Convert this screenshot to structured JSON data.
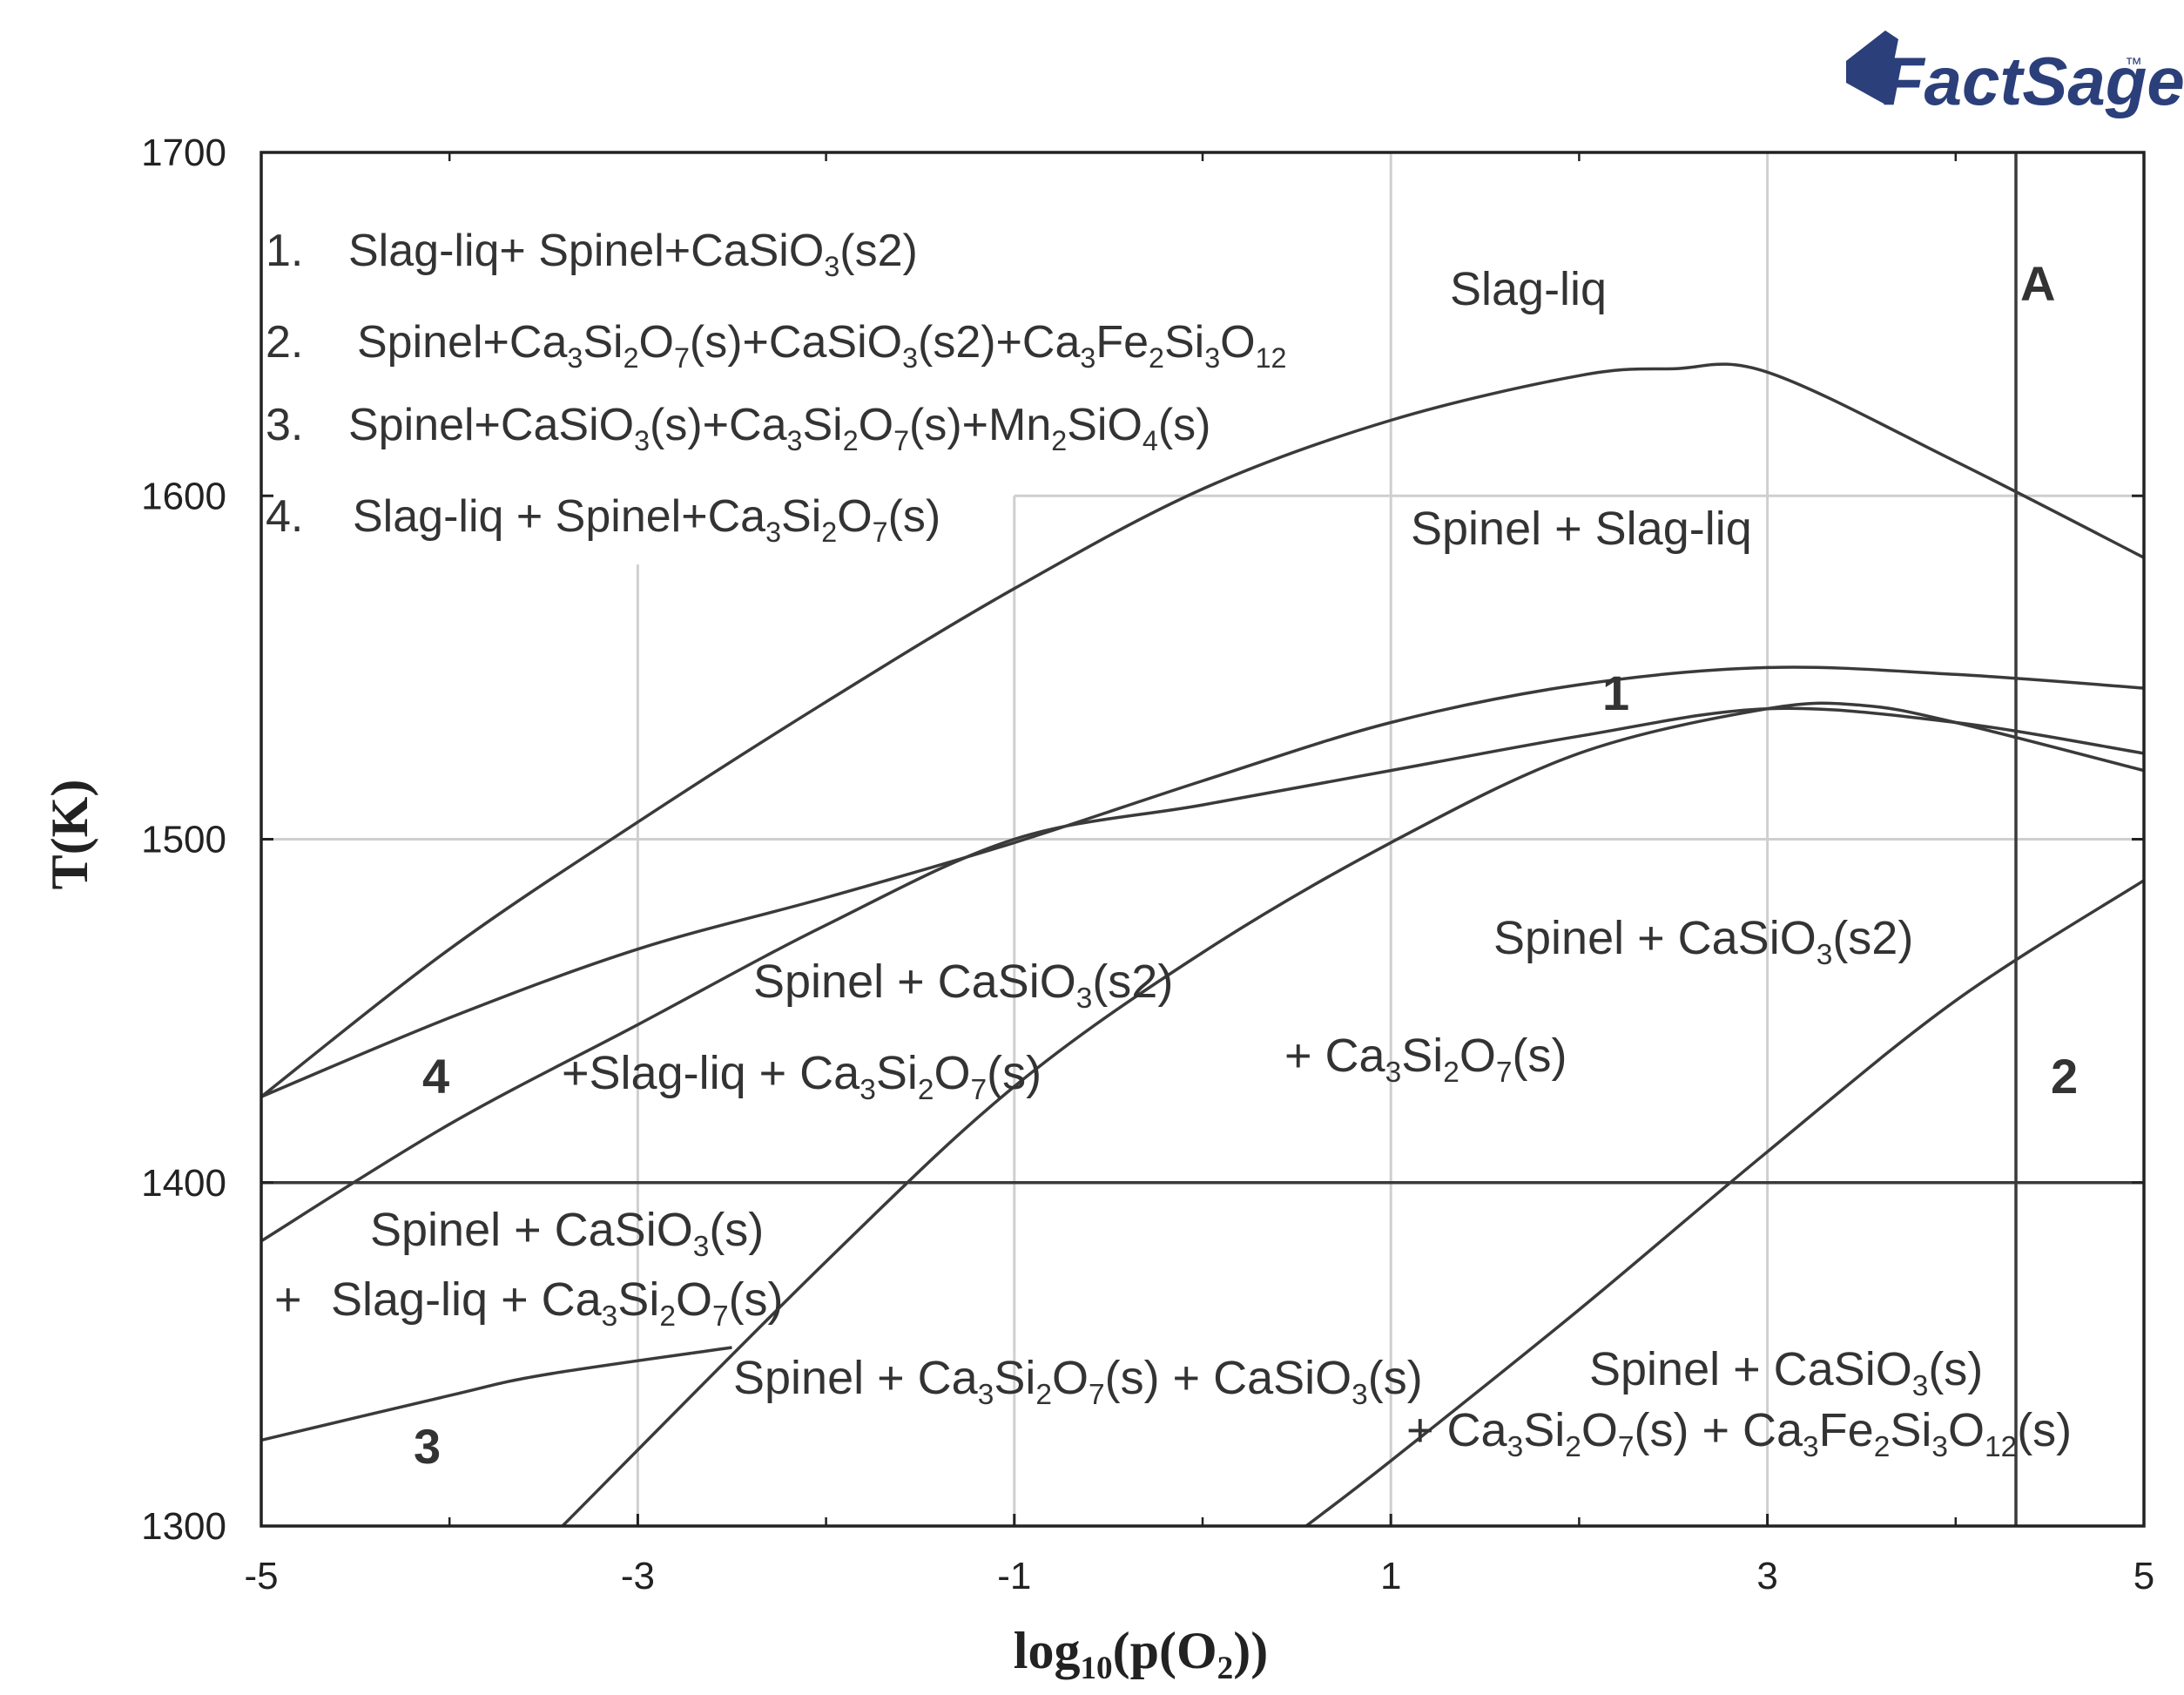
{
  "chart_data": {
    "type": "line",
    "title": "",
    "xlabel": "log10(p(O2))",
    "ylabel": "T(K)",
    "xlim": [
      -5,
      5
    ],
    "ylim": [
      1300,
      1700
    ],
    "x_ticks": [
      -5,
      -3,
      -1,
      1,
      3,
      5
    ],
    "y_ticks": [
      1300,
      1400,
      1500,
      1600,
      1700
    ],
    "x_tick_labels": [
      "-5",
      "-3",
      "-1",
      "1",
      "3",
      "5"
    ],
    "y_tick_labels": [
      "1300",
      "1400",
      "1500",
      "1600",
      "1700"
    ],
    "gridlines": [
      {
        "type": "v",
        "x": -3,
        "y0": 1300,
        "y1": 1580
      },
      {
        "type": "v",
        "x": -1,
        "y0": 1300,
        "y1": 1600
      },
      {
        "type": "v",
        "x": 1,
        "y0": 1300,
        "y1": 1700
      },
      {
        "type": "v",
        "x": 3,
        "y0": 1300,
        "y1": 1700
      },
      {
        "type": "h",
        "y": 1600,
        "x0": -1,
        "x1": 5
      },
      {
        "type": "h",
        "y": 1500,
        "x0": -5,
        "x1": 5
      }
    ],
    "phase_boundaries": [
      {
        "id": "liquidus",
        "points": [
          [
            -5,
            1425
          ],
          [
            -4,
            1468
          ],
          [
            -3,
            1505
          ],
          [
            -2,
            1540
          ],
          [
            -1,
            1573
          ],
          [
            0,
            1602
          ],
          [
            1,
            1622
          ],
          [
            2,
            1635
          ],
          [
            2.5,
            1637
          ],
          [
            3,
            1636
          ],
          [
            4,
            1610
          ],
          [
            5,
            1582
          ]
        ]
      },
      {
        "id": "spinel-slag-lower",
        "points": [
          [
            -5,
            1425
          ],
          [
            -4,
            1448
          ],
          [
            -3,
            1468
          ],
          [
            -2,
            1483
          ],
          [
            -1,
            1499
          ],
          [
            0,
            1517
          ],
          [
            1,
            1534
          ],
          [
            2,
            1545
          ],
          [
            3,
            1550
          ],
          [
            4,
            1548
          ],
          [
            5,
            1544
          ]
        ]
      },
      {
        "id": "casio3-boundary",
        "points": [
          [
            -5,
            1383
          ],
          [
            -4,
            1417
          ],
          [
            -3,
            1446
          ],
          [
            -2,
            1475
          ],
          [
            -1,
            1500
          ],
          [
            0,
            1510
          ],
          [
            1,
            1520
          ],
          [
            2,
            1530
          ],
          [
            3,
            1538
          ],
          [
            4,
            1534
          ],
          [
            5,
            1525
          ]
        ]
      },
      {
        "id": "ca3si2o7-boundary",
        "points": [
          [
            -3.4,
            1300
          ],
          [
            -2,
            1377
          ],
          [
            -1,
            1428
          ],
          [
            0,
            1467
          ],
          [
            1,
            1499
          ],
          [
            2,
            1525
          ],
          [
            3,
            1538
          ],
          [
            3.5,
            1539
          ],
          [
            4,
            1534
          ],
          [
            5,
            1520
          ]
        ]
      },
      {
        "id": "lower-left-boundary",
        "points": [
          [
            -5,
            1325
          ],
          [
            -4,
            1338
          ],
          [
            -3.5,
            1344
          ],
          [
            -2.5,
            1352
          ]
        ]
      },
      {
        "id": "garnet-boundary",
        "points": [
          [
            0.55,
            1300
          ],
          [
            1,
            1319
          ],
          [
            2,
            1363
          ],
          [
            3,
            1409
          ],
          [
            4,
            1453
          ],
          [
            5,
            1488
          ]
        ]
      },
      {
        "id": "isotherm-1400",
        "points": [
          [
            -5,
            1400
          ],
          [
            5,
            1400
          ]
        ]
      },
      {
        "id": "vertical-A",
        "points": [
          [
            4.32,
            1300
          ],
          [
            4.32,
            1700
          ]
        ]
      }
    ],
    "legend": [
      {
        "num": "1.",
        "label": "Slag-liq+ Spinel+CaSiO3(s2)"
      },
      {
        "num": "2.",
        "label": "Spinel+Ca3Si2O7(s)+CaSiO3(s2)+Ca3Fe2Si3O12"
      },
      {
        "num": "3.",
        "label": "Spinel+CaSiO3(s)+Ca3Si2O7(s)+Mn2SiO4(s)"
      },
      {
        "num": "4.",
        "label": "Slag-liq + Spinel+Ca3Si2O7(s)"
      }
    ],
    "region_labels": [
      {
        "text": "Slag-liq"
      },
      {
        "text": "Spinel + Slag-liq"
      },
      {
        "text": "Spinel + CaSiO3(s2)"
      },
      {
        "text": "+ Ca3Si2O7(s)"
      },
      {
        "text": "Spinel + CaSiO3(s2)"
      },
      {
        "text": "+Slag-liq + Ca3Si2O7(s)"
      },
      {
        "text": "Spinel + CaSiO3(s)"
      },
      {
        "text": "+ Slag-liq + Ca3Si2O7(s)"
      },
      {
        "text": "Spinel + Ca3Si2O7(s) + CaSiO3(s)"
      },
      {
        "text": "Spinel + CaSiO3(s)"
      },
      {
        "text": "+ Ca3Si2O7(s) + Ca3Fe2Si3O12(s)"
      },
      {
        "text": "1"
      },
      {
        "text": "2"
      },
      {
        "text": "3"
      },
      {
        "text": "4"
      },
      {
        "text": "A"
      }
    ],
    "logo": "FactSage"
  }
}
